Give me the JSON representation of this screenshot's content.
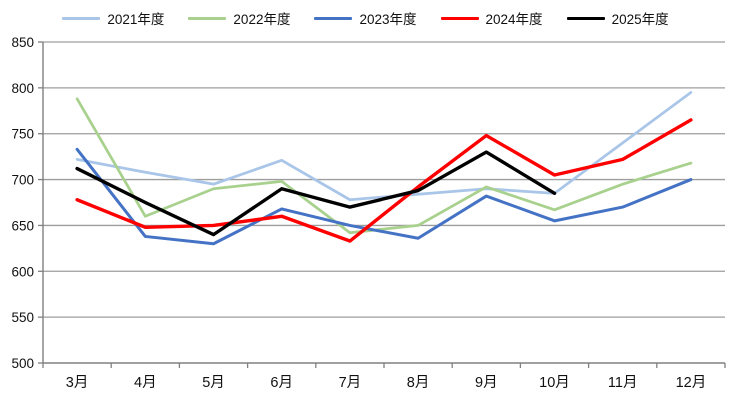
{
  "chart_data": {
    "type": "line",
    "title": "",
    "xlabel": "",
    "ylabel": "",
    "categories": [
      "3月",
      "4月",
      "5月",
      "6月",
      "7月",
      "8月",
      "9月",
      "10月",
      "11月",
      "12月"
    ],
    "series": [
      {
        "name": "2021年度",
        "color": "#a9c5e8",
        "width": 2.75,
        "values": [
          722,
          708,
          695,
          721,
          678,
          684,
          690,
          685,
          740,
          795
        ]
      },
      {
        "name": "2022年度",
        "color": "#a9d18e",
        "width": 2.75,
        "values": [
          788,
          660,
          690,
          698,
          642,
          650,
          692,
          667,
          695,
          718
        ]
      },
      {
        "name": "2023年度",
        "color": "#4472c4",
        "width": 3,
        "values": [
          733,
          638,
          630,
          668,
          650,
          636,
          682,
          655,
          670,
          700
        ]
      },
      {
        "name": "2024年度",
        "color": "#fe0000",
        "width": 3.4,
        "values": [
          678,
          648,
          650,
          660,
          633,
          692,
          748,
          705,
          722,
          765
        ]
      },
      {
        "name": "2025年度",
        "color": "#000000",
        "width": 3.4,
        "values": [
          712,
          675,
          640,
          690,
          670,
          688,
          730,
          685,
          null,
          null
        ]
      }
    ],
    "ylim": [
      500,
      850
    ],
    "yticks": [
      850,
      800,
      750,
      700,
      650,
      600,
      550,
      500
    ],
    "grid": "horizontal",
    "legend_position": "top"
  },
  "colors": {
    "grid": "#9d9d9d",
    "axis": "#808080",
    "tick_text": "#111111",
    "background": "#ffffff"
  }
}
